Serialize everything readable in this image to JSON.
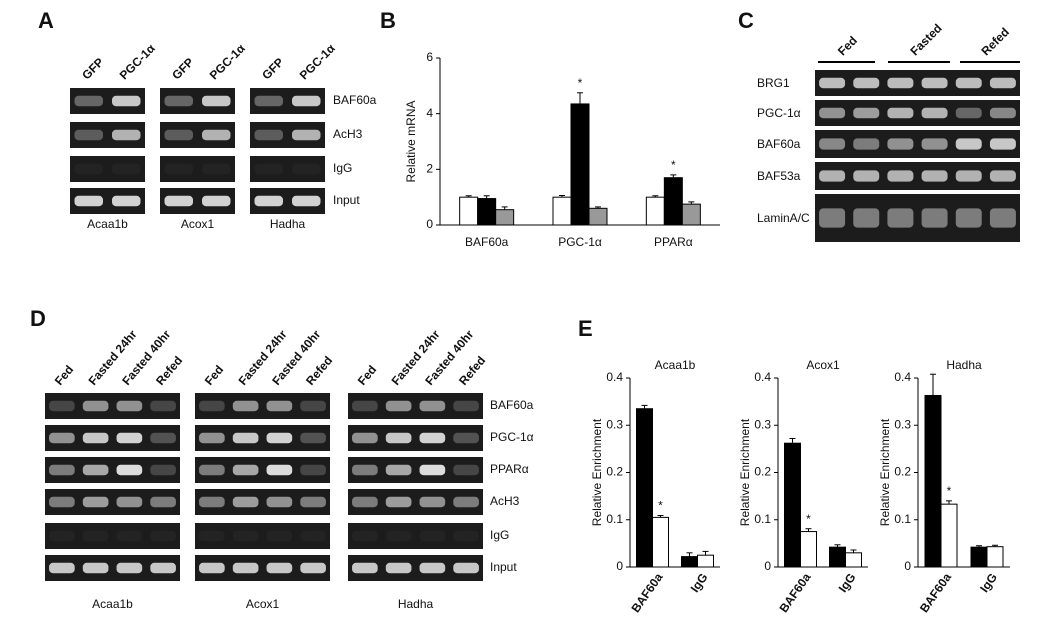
{
  "panels": {
    "A": {
      "label": "A",
      "lanes": [
        "GFP",
        "PGC-1α"
      ],
      "rows": [
        "BAF60a",
        "AcH3",
        "IgG",
        "Input"
      ],
      "genes": [
        "Acaa1b",
        "Acox1",
        "Hadha"
      ]
    },
    "B": {
      "label": "B"
    },
    "C": {
      "label": "C",
      "groups": [
        "Fed",
        "Fasted",
        "Refed"
      ],
      "rows": [
        "BRG1",
        "PGC-1α",
        "BAF60a",
        "BAF53a",
        "LaminA/C"
      ]
    },
    "D": {
      "label": "D",
      "lanes": [
        "Fed",
        "Fasted 24hr",
        "Fasted 40hr",
        "Refed"
      ],
      "rows": [
        "BAF60a",
        "PGC-1α",
        "PPARα",
        "AcH3",
        "IgG",
        "Input"
      ],
      "genes": [
        "Acaa1b",
        "Acox1",
        "Hadha"
      ]
    },
    "E": {
      "label": "E"
    }
  },
  "chart_data": [
    {
      "type": "bar",
      "ylabel": "Relative mRNA",
      "categories": [
        "BAF60a",
        "PGC-1α",
        "PPARα"
      ],
      "series": [
        {
          "color": "#ffffff",
          "values": [
            1.0,
            1.0,
            1.0
          ],
          "errors": [
            0.05,
            0.06,
            0.05
          ],
          "annotations": [
            null,
            null,
            null
          ]
        },
        {
          "color": "#000000",
          "values": [
            0.95,
            4.35,
            1.7
          ],
          "errors": [
            0.1,
            0.4,
            0.1
          ],
          "annotations": [
            null,
            "*",
            "*"
          ]
        },
        {
          "color": "#999999",
          "values": [
            0.55,
            0.6,
            0.75
          ],
          "errors": [
            0.1,
            0.05,
            0.08
          ],
          "annotations": [
            null,
            null,
            null
          ]
        }
      ],
      "ylim": [
        0,
        6
      ],
      "yticks": [
        0,
        2,
        4,
        6
      ]
    },
    {
      "type": "bar",
      "title": "Acaa1b",
      "ylabel": "Relative Enrichment",
      "categories": [
        "BAF60a",
        "IgG"
      ],
      "series": [
        {
          "color": "#000000",
          "values": [
            0.335,
            0.022
          ],
          "errors": [
            0.007,
            0.008
          ],
          "annotations": [
            null,
            null
          ]
        },
        {
          "color": "#ffffff",
          "values": [
            0.105,
            0.025
          ],
          "errors": [
            0.004,
            0.008
          ],
          "annotations": [
            "*",
            null
          ]
        }
      ],
      "ylim": [
        0,
        0.4
      ],
      "yticks": [
        0,
        0.1,
        0.2,
        0.3,
        0.4
      ]
    },
    {
      "type": "bar",
      "title": "Acox1",
      "ylabel": "Relative Enrichment",
      "categories": [
        "BAF60a",
        "IgG"
      ],
      "series": [
        {
          "color": "#000000",
          "values": [
            0.262,
            0.042
          ],
          "errors": [
            0.01,
            0.005
          ],
          "annotations": [
            null,
            null
          ]
        },
        {
          "color": "#ffffff",
          "values": [
            0.075,
            0.03
          ],
          "errors": [
            0.006,
            0.006
          ],
          "annotations": [
            "*",
            null
          ]
        }
      ],
      "ylim": [
        0,
        0.4
      ],
      "yticks": [
        0,
        0.1,
        0.2,
        0.3,
        0.4
      ]
    },
    {
      "type": "bar",
      "title": "Hadha",
      "ylabel": "Relative Enrichment",
      "categories": [
        "BAF60a",
        "IgG"
      ],
      "series": [
        {
          "color": "#000000",
          "values": [
            0.363,
            0.042
          ],
          "errors": [
            0.045,
            0.003
          ],
          "annotations": [
            null,
            null
          ]
        },
        {
          "color": "#ffffff",
          "values": [
            0.133,
            0.043
          ],
          "errors": [
            0.007,
            0.003
          ],
          "annotations": [
            "*",
            null
          ]
        }
      ],
      "ylim": [
        0,
        0.4
      ],
      "yticks": [
        0,
        0.1,
        0.2,
        0.3,
        0.4
      ]
    }
  ]
}
